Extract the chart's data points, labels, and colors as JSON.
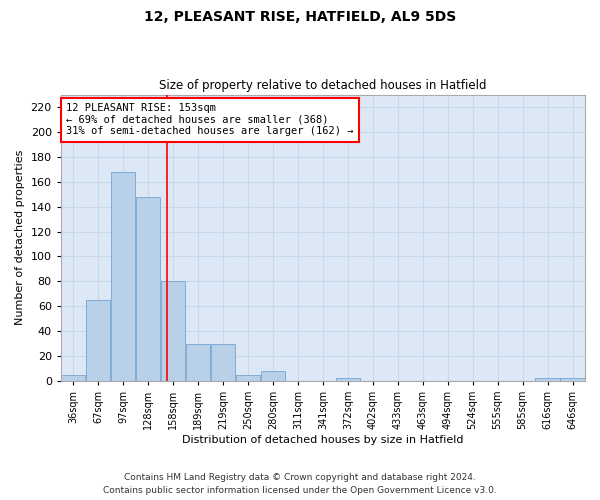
{
  "title1": "12, PLEASANT RISE, HATFIELD, AL9 5DS",
  "title2": "Size of property relative to detached houses in Hatfield",
  "xlabel": "Distribution of detached houses by size in Hatfield",
  "ylabel": "Number of detached properties",
  "categories": [
    "36sqm",
    "67sqm",
    "97sqm",
    "128sqm",
    "158sqm",
    "189sqm",
    "219sqm",
    "250sqm",
    "280sqm",
    "311sqm",
    "341sqm",
    "372sqm",
    "402sqm",
    "433sqm",
    "463sqm",
    "494sqm",
    "524sqm",
    "555sqm",
    "585sqm",
    "616sqm",
    "646sqm"
  ],
  "values": [
    5,
    65,
    168,
    148,
    80,
    30,
    30,
    5,
    8,
    0,
    0,
    2,
    0,
    0,
    0,
    0,
    0,
    0,
    0,
    2,
    2
  ],
  "bar_color": "#b8d0e8",
  "bar_edge_color": "#6699cc",
  "grid_color": "#c8d8ea",
  "background_color": "#dce8f5",
  "annotation_line1": "12 PLEASANT RISE: 153sqm",
  "annotation_line2": "← 69% of detached houses are smaller (368)",
  "annotation_line3": "31% of semi-detached houses are larger (162) →",
  "footer1": "Contains HM Land Registry data © Crown copyright and database right 2024.",
  "footer2": "Contains public sector information licensed under the Open Government Licence v3.0.",
  "ylim": [
    0,
    230
  ],
  "yticks": [
    0,
    20,
    40,
    60,
    80,
    100,
    120,
    140,
    160,
    180,
    200,
    220
  ],
  "red_line_index": 3.77,
  "title1_fontsize": 10,
  "title2_fontsize": 8.5,
  "ylabel_fontsize": 8,
  "xlabel_fontsize": 8,
  "tick_fontsize": 7,
  "footer_fontsize": 6.5
}
